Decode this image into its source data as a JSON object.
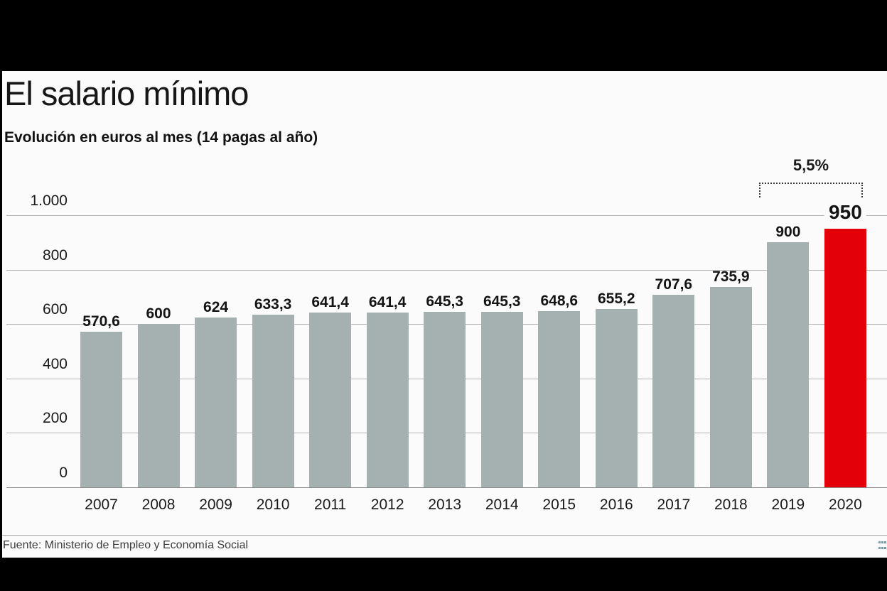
{
  "page": {
    "background": "#000000",
    "panel_background": "#fbfbfb"
  },
  "chart_data": {
    "type": "bar",
    "title": "El salario mínimo",
    "subtitle": "Evolución en euros al mes (14 pagas al año)",
    "source": "Fuente: Ministerio de Empleo y Economía Social",
    "categories": [
      "2007",
      "2008",
      "2009",
      "2010",
      "2011",
      "2012",
      "2013",
      "2014",
      "2015",
      "2016",
      "2017",
      "2018",
      "2019",
      "2020"
    ],
    "values": [
      570.6,
      600,
      624,
      633.3,
      641.4,
      641.4,
      645.3,
      645.3,
      648.6,
      655.2,
      707.6,
      735.9,
      900,
      950
    ],
    "value_labels": [
      "570,6",
      "600",
      "624",
      "633,3",
      "641,4",
      "641,4",
      "645,3",
      "645,3",
      "648,6",
      "655,2",
      "707,6",
      "735,9",
      "900",
      "950"
    ],
    "highlight_category": "2020",
    "bar_color": "#a4b1b0",
    "highlight_color": "#e30009",
    "grid": true,
    "legend": "none",
    "ylim": [
      0,
      1000
    ],
    "yticks": [
      0,
      200,
      400,
      600,
      800,
      1000
    ],
    "ytick_labels": [
      "0",
      "200",
      "400",
      "600",
      "800",
      "1.000"
    ],
    "annotation": {
      "label": "5,5%",
      "from": "2019",
      "to": "2020"
    }
  }
}
